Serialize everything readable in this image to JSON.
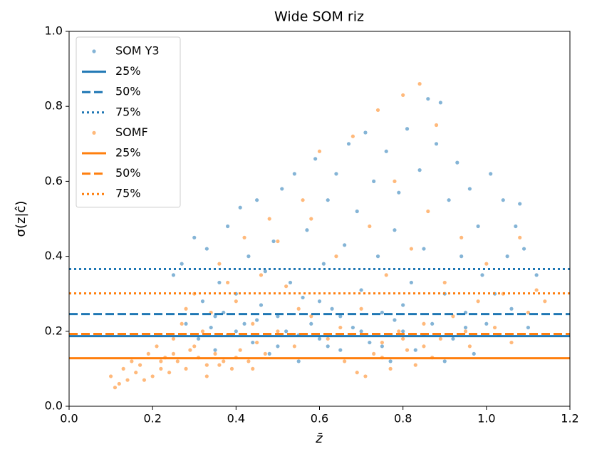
{
  "chart_data": {
    "type": "scatter",
    "title": "Wide SOM riz",
    "xlabel": "z̄",
    "ylabel": "σ(z|ĉ)",
    "xlim": [
      0,
      1.2
    ],
    "ylim": [
      0,
      1.0
    ],
    "xticks": [
      {
        "value": 0,
        "label": "0.0"
      },
      0.2,
      0.4,
      0.6,
      0.8,
      {
        "value": 1,
        "label": "1.0"
      },
      1.2
    ],
    "yticks": [
      {
        "value": 0,
        "label": "0.0"
      },
      0.2,
      0.4,
      0.6,
      0.8,
      {
        "value": 1,
        "label": "1.0"
      }
    ],
    "legend": "upper left",
    "series": [
      {
        "name": "SOM Y3",
        "color": "#1f77b4",
        "x": [
          0.25,
          0.27,
          0.28,
          0.3,
          0.31,
          0.32,
          0.33,
          0.34,
          0.35,
          0.36,
          0.37,
          0.38,
          0.39,
          0.4,
          0.41,
          0.42,
          0.43,
          0.44,
          0.45,
          0.46,
          0.47,
          0.48,
          0.49,
          0.5,
          0.51,
          0.52,
          0.53,
          0.54,
          0.55,
          0.56,
          0.57,
          0.58,
          0.59,
          0.6,
          0.61,
          0.62,
          0.63,
          0.64,
          0.65,
          0.66,
          0.67,
          0.68,
          0.69,
          0.7,
          0.71,
          0.72,
          0.73,
          0.74,
          0.75,
          0.76,
          0.77,
          0.78,
          0.79,
          0.8,
          0.81,
          0.82,
          0.83,
          0.84,
          0.85,
          0.86,
          0.87,
          0.88,
          0.89,
          0.9,
          0.91,
          0.92,
          0.93,
          0.94,
          0.95,
          0.96,
          0.97,
          0.98,
          0.99,
          1.0,
          1.01,
          1.02,
          1.03,
          1.04,
          1.05,
          1.06,
          1.07,
          1.08,
          1.09,
          1.1,
          1.12,
          0.45,
          0.55,
          0.65,
          0.75,
          0.85,
          0.35,
          0.5,
          0.6,
          0.7,
          0.8,
          0.9,
          0.95,
          0.4,
          0.62,
          0.78
        ],
        "values": [
          0.35,
          0.38,
          0.22,
          0.45,
          0.18,
          0.28,
          0.42,
          0.21,
          0.15,
          0.33,
          0.25,
          0.48,
          0.19,
          0.3,
          0.53,
          0.22,
          0.4,
          0.17,
          0.55,
          0.27,
          0.36,
          0.14,
          0.44,
          0.24,
          0.58,
          0.2,
          0.33,
          0.62,
          0.12,
          0.29,
          0.47,
          0.22,
          0.66,
          0.18,
          0.38,
          0.55,
          0.26,
          0.62,
          0.15,
          0.43,
          0.7,
          0.21,
          0.52,
          0.31,
          0.73,
          0.17,
          0.6,
          0.4,
          0.25,
          0.68,
          0.12,
          0.47,
          0.57,
          0.2,
          0.74,
          0.33,
          0.15,
          0.63,
          0.42,
          0.82,
          0.22,
          0.7,
          0.81,
          0.3,
          0.55,
          0.18,
          0.65,
          0.4,
          0.25,
          0.58,
          0.14,
          0.48,
          0.35,
          0.22,
          0.62,
          0.3,
          0.19,
          0.55,
          0.4,
          0.26,
          0.48,
          0.54,
          0.42,
          0.21,
          0.35,
          0.23,
          0.19,
          0.24,
          0.16,
          0.19,
          0.24,
          0.16,
          0.28,
          0.2,
          0.27,
          0.12,
          0.21,
          0.2,
          0.16,
          0.23
        ],
        "quantiles": [
          {
            "name": "25%",
            "style": "solid",
            "value": 0.187
          },
          {
            "name": "50%",
            "style": "dashed",
            "value": 0.246
          },
          {
            "name": "75%",
            "style": "dotted",
            "value": 0.366
          }
        ]
      },
      {
        "name": "SOMF",
        "color": "#ff7f0e",
        "x": [
          0.1,
          0.11,
          0.12,
          0.13,
          0.14,
          0.15,
          0.16,
          0.17,
          0.18,
          0.19,
          0.2,
          0.21,
          0.22,
          0.23,
          0.24,
          0.25,
          0.26,
          0.27,
          0.28,
          0.29,
          0.3,
          0.31,
          0.32,
          0.33,
          0.34,
          0.35,
          0.36,
          0.37,
          0.38,
          0.39,
          0.4,
          0.41,
          0.42,
          0.43,
          0.44,
          0.45,
          0.46,
          0.47,
          0.48,
          0.5,
          0.52,
          0.54,
          0.56,
          0.58,
          0.6,
          0.62,
          0.64,
          0.66,
          0.68,
          0.69,
          0.7,
          0.71,
          0.72,
          0.73,
          0.74,
          0.75,
          0.76,
          0.77,
          0.78,
          0.79,
          0.8,
          0.81,
          0.82,
          0.83,
          0.84,
          0.85,
          0.86,
          0.87,
          0.88,
          0.89,
          0.9,
          0.92,
          0.94,
          0.96,
          0.98,
          1.0,
          1.02,
          1.04,
          1.06,
          1.08,
          1.1,
          1.12,
          1.14,
          0.25,
          0.3,
          0.33,
          0.36,
          0.4,
          0.44,
          0.55,
          0.65,
          0.75,
          0.8,
          0.85,
          0.95,
          0.28,
          0.38,
          0.5,
          0.58,
          0.22
        ],
        "values": [
          0.08,
          0.05,
          0.06,
          0.1,
          0.07,
          0.12,
          0.09,
          0.11,
          0.07,
          0.14,
          0.08,
          0.16,
          0.1,
          0.13,
          0.09,
          0.18,
          0.12,
          0.22,
          0.1,
          0.15,
          0.3,
          0.13,
          0.2,
          0.11,
          0.25,
          0.14,
          0.38,
          0.12,
          0.19,
          0.1,
          0.28,
          0.15,
          0.45,
          0.12,
          0.22,
          0.17,
          0.35,
          0.14,
          0.5,
          0.2,
          0.32,
          0.16,
          0.55,
          0.24,
          0.68,
          0.18,
          0.4,
          0.12,
          0.72,
          0.09,
          0.26,
          0.08,
          0.48,
          0.14,
          0.79,
          0.17,
          0.35,
          0.1,
          0.6,
          0.2,
          0.83,
          0.15,
          0.42,
          0.11,
          0.86,
          0.22,
          0.52,
          0.13,
          0.75,
          0.18,
          0.33,
          0.24,
          0.45,
          0.16,
          0.28,
          0.38,
          0.21,
          0.3,
          0.17,
          0.45,
          0.25,
          0.31,
          0.28,
          0.14,
          0.16,
          0.08,
          0.11,
          0.13,
          0.1,
          0.26,
          0.21,
          0.13,
          0.18,
          0.16,
          0.2,
          0.26,
          0.33,
          0.44,
          0.5,
          0.12
        ],
        "quantiles": [
          {
            "name": "25%",
            "style": "solid",
            "value": 0.128
          },
          {
            "name": "50%",
            "style": "dashed",
            "value": 0.193
          },
          {
            "name": "75%",
            "style": "dotted",
            "value": 0.301
          }
        ]
      }
    ]
  }
}
